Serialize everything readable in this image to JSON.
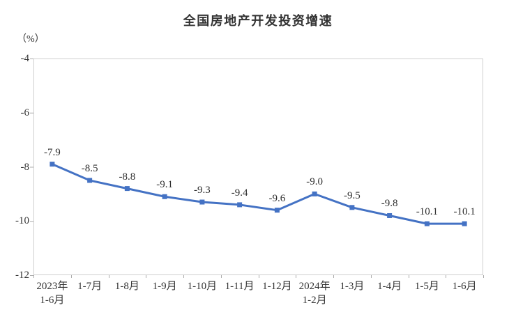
{
  "chart": {
    "title": "全国房地产开发投资增速",
    "unit_label": "（%）"
  },
  "chart_data": {
    "type": "line",
    "title": "全国房地产开发投资增速",
    "ylabel": "（%）",
    "xlabel": "",
    "categories": [
      "2023年\n1-6月",
      "1-7月",
      "1-8月",
      "1-9月",
      "1-10月",
      "1-11月",
      "1-12月",
      "2024年\n1-2月",
      "1-3月",
      "1-4月",
      "1-5月",
      "1-6月"
    ],
    "values": [
      -7.9,
      -8.5,
      -8.8,
      -9.1,
      -9.3,
      -9.4,
      -9.6,
      -9.0,
      -9.5,
      -9.8,
      -10.1,
      -10.1
    ],
    "data_labels": [
      "-7.9",
      "-8.5",
      "-8.8",
      "-9.1",
      "-9.3",
      "-9.4",
      "-9.6",
      "-9.0",
      "-9.5",
      "-9.8",
      "-10.1",
      "-10.1"
    ],
    "ylim": [
      -12,
      -4
    ],
    "yticks": [
      -4,
      -6,
      -8,
      -10,
      -12
    ],
    "grid": false,
    "legend": "none",
    "marker": "square",
    "colors": {
      "line": "#4472C4",
      "marker": "#4472C4",
      "text": "#333333",
      "border": "#CFCFCF",
      "tick": "#ABABAB"
    }
  }
}
